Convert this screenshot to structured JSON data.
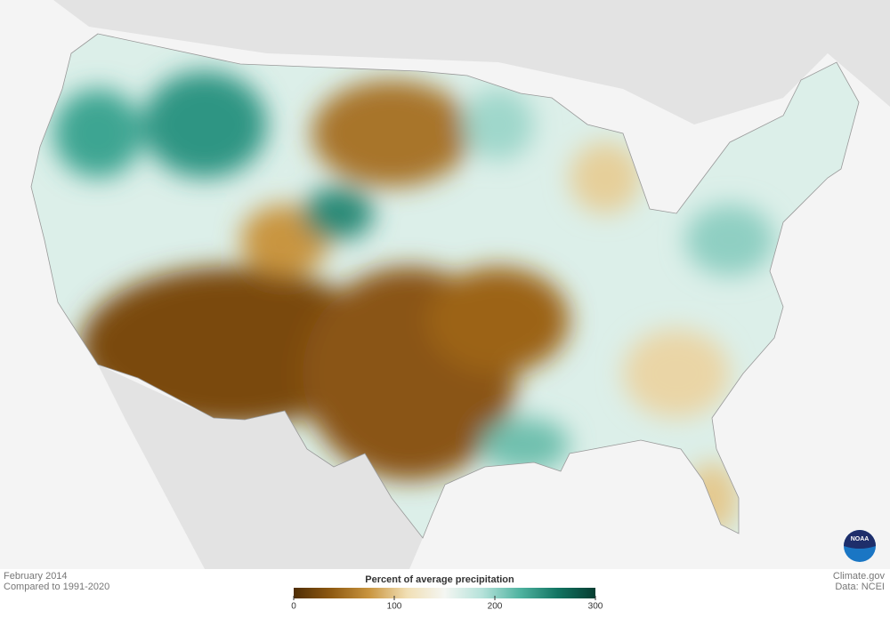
{
  "title": "Percent of average precipitation",
  "period": "February 2014",
  "baseline": "Compared to 1991-2020",
  "source": "Climate.gov",
  "data_credit": "Data: NCEI",
  "logo": "NOAA",
  "legend": {
    "lim": [
      0,
      300
    ],
    "ticks": [
      0,
      100,
      200,
      300
    ],
    "colors": [
      "#4f2d05",
      "#8f5a12",
      "#c9953f",
      "#f1dfb4",
      "#f4f6f2",
      "#b5e2da",
      "#4fb3a0",
      "#127462",
      "#063d31"
    ]
  }
}
